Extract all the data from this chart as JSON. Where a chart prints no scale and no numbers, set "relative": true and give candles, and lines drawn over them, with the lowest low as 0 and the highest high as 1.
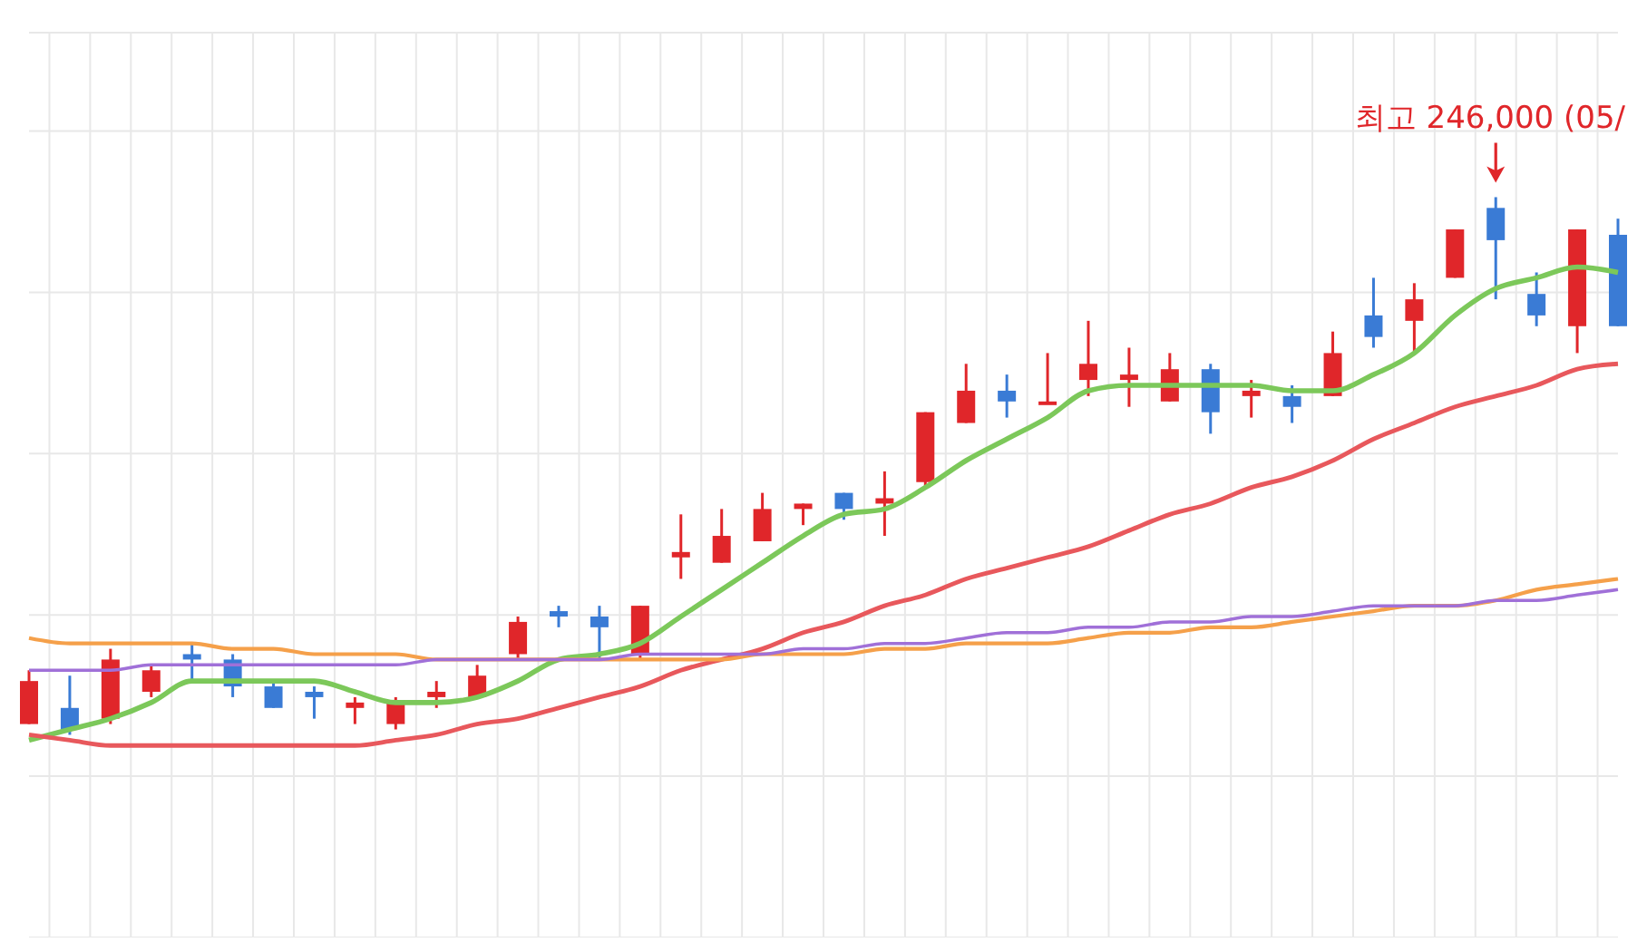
{
  "chart_data": {
    "type": "candlestick",
    "relative": true,
    "grid": true,
    "categories": [
      null,
      null,
      null,
      null,
      null,
      null,
      null,
      null,
      null,
      null,
      null,
      null,
      null,
      null,
      null,
      null,
      null,
      null,
      null,
      null,
      null,
      null,
      null,
      null,
      null,
      null,
      null,
      null,
      null,
      null,
      null,
      null,
      null,
      null,
      null,
      null,
      null,
      null,
      null,
      null
    ],
    "ohlc": [
      [
        0.02,
        0.12,
        0.02,
        0.1
      ],
      [
        0.05,
        0.11,
        0,
        0.01
      ],
      [
        0.03,
        0.16,
        0.02,
        0.14
      ],
      [
        0.08,
        0.13,
        0.07,
        0.12
      ],
      [
        0.15,
        0.17,
        0.1,
        0.14
      ],
      [
        0.14,
        0.15,
        0.07,
        0.09
      ],
      [
        0.09,
        0.1,
        0.05,
        0.05
      ],
      [
        0.08,
        0.09,
        0.03,
        0.07
      ],
      [
        0.05,
        0.07,
        0.02,
        0.06
      ],
      [
        0.02,
        0.07,
        0.01,
        0.06
      ],
      [
        0.07,
        0.1,
        0.05,
        0.08
      ],
      [
        0.07,
        0.13,
        0.07,
        0.11
      ],
      [
        0.15,
        0.22,
        0.14,
        0.21
      ],
      [
        0.23,
        0.24,
        0.2,
        0.22
      ],
      [
        0.22,
        0.24,
        0.14,
        0.2
      ],
      [
        0.15,
        0.24,
        0.14,
        0.24
      ],
      [
        0.33,
        0.41,
        0.29,
        0.34
      ],
      [
        0.32,
        0.42,
        0.32,
        0.37
      ],
      [
        0.36,
        0.45,
        0.36,
        0.42
      ],
      [
        0.42,
        0.43,
        0.39,
        0.43
      ],
      [
        0.45,
        0.45,
        0.4,
        0.42
      ],
      [
        0.43,
        0.49,
        0.37,
        0.44
      ],
      [
        0.47,
        0.6,
        0.46,
        0.6
      ],
      [
        0.58,
        0.69,
        0.58,
        0.64
      ],
      [
        0.64,
        0.67,
        0.59,
        0.62
      ],
      [
        0.615,
        0.71,
        0.615,
        0.62
      ],
      [
        0.66,
        0.77,
        0.63,
        0.69
      ],
      [
        0.66,
        0.72,
        0.61,
        0.67
      ],
      [
        0.62,
        0.71,
        0.62,
        0.68
      ],
      [
        0.68,
        0.69,
        0.56,
        0.6
      ],
      [
        0.63,
        0.66,
        0.59,
        0.64
      ],
      [
        0.63,
        0.65,
        0.58,
        0.61
      ],
      [
        0.63,
        0.75,
        0.63,
        0.71
      ],
      [
        0.78,
        0.85,
        0.72,
        0.74
      ],
      [
        0.77,
        0.84,
        0.71,
        0.81
      ],
      [
        0.85,
        0.94,
        0.85,
        0.94
      ],
      [
        0.98,
        1,
        0.81,
        0.92
      ],
      [
        0.82,
        0.86,
        0.76,
        0.78
      ],
      [
        0.76,
        0.94,
        0.71,
        0.94
      ],
      [
        0.93,
        0.96,
        0.76,
        0.76
      ]
    ],
    "colors": [
      "#e0262a",
      "#3a7bd5",
      "#e0262a",
      "#e0262a",
      "#3a7bd5",
      "#3a7bd5",
      "#3a7bd5",
      "#3a7bd5",
      "#e0262a",
      "#e0262a",
      "#e0262a",
      "#e0262a",
      "#e0262a",
      "#3a7bd5",
      "#3a7bd5",
      "#e0262a",
      "#e0262a",
      "#e0262a",
      "#e0262a",
      "#e0262a",
      "#3a7bd5",
      "#e0262a",
      "#e0262a",
      "#e0262a",
      "#3a7bd5",
      "#e0262a",
      "#e0262a",
      "#e0262a",
      "#e0262a",
      "#3a7bd5",
      "#e0262a",
      "#3a7bd5",
      "#e0262a",
      "#3a7bd5",
      "#e0262a",
      "#e0262a",
      "#3a7bd5",
      "#3a7bd5",
      "#e0262a",
      "#3a7bd5"
    ],
    "series": [
      {
        "type": "line",
        "color": "#7cc85a",
        "values": [
          -0.01,
          0.01,
          0.03,
          0.06,
          0.1,
          0.1,
          0.1,
          0.1,
          0.08,
          0.06,
          0.06,
          0.07,
          0.1,
          0.14,
          0.15,
          0.17,
          0.22,
          0.27,
          0.32,
          0.37,
          0.41,
          0.42,
          0.46,
          0.51,
          0.55,
          0.59,
          0.64,
          0.65,
          0.65,
          0.65,
          0.65,
          0.64,
          0.64,
          0.67,
          0.71,
          0.78,
          0.83,
          0.85,
          0.87,
          0.86
        ]
      },
      {
        "type": "line",
        "color": "#e8585c",
        "values": [
          0,
          -0.01,
          -0.02,
          -0.02,
          -0.02,
          -0.02,
          -0.02,
          -0.02,
          -0.02,
          -0.01,
          0,
          0.02,
          0.03,
          0.05,
          0.07,
          0.09,
          0.12,
          0.14,
          0.16,
          0.19,
          0.21,
          0.24,
          0.26,
          0.29,
          0.31,
          0.33,
          0.35,
          0.38,
          0.41,
          0.43,
          0.46,
          0.48,
          0.51,
          0.55,
          0.58,
          0.61,
          0.63,
          0.65,
          0.68,
          0.69
        ]
      },
      {
        "type": "line",
        "color": "#f5a04a",
        "values": [
          0.18,
          0.17,
          0.17,
          0.17,
          0.17,
          0.16,
          0.16,
          0.15,
          0.15,
          0.15,
          0.14,
          0.14,
          0.14,
          0.14,
          0.14,
          0.14,
          0.14,
          0.14,
          0.15,
          0.15,
          0.15,
          0.16,
          0.16,
          0.17,
          0.17,
          0.17,
          0.18,
          0.19,
          0.19,
          0.2,
          0.2,
          0.21,
          0.22,
          0.23,
          0.24,
          0.24,
          0.25,
          0.27,
          0.28,
          0.29
        ]
      },
      {
        "type": "line",
        "color": "#a070d8",
        "values": [
          0.12,
          0.12,
          0.12,
          0.13,
          0.13,
          0.13,
          0.13,
          0.13,
          0.13,
          0.13,
          0.14,
          0.14,
          0.14,
          0.14,
          0.14,
          0.15,
          0.15,
          0.15,
          0.15,
          0.16,
          0.16,
          0.17,
          0.17,
          0.18,
          0.19,
          0.19,
          0.2,
          0.2,
          0.21,
          0.21,
          0.22,
          0.22,
          0.23,
          0.24,
          0.24,
          0.24,
          0.25,
          0.25,
          0.26,
          0.27
        ]
      }
    ],
    "annotations": [
      "최고 246,000 (05/"
    ]
  }
}
